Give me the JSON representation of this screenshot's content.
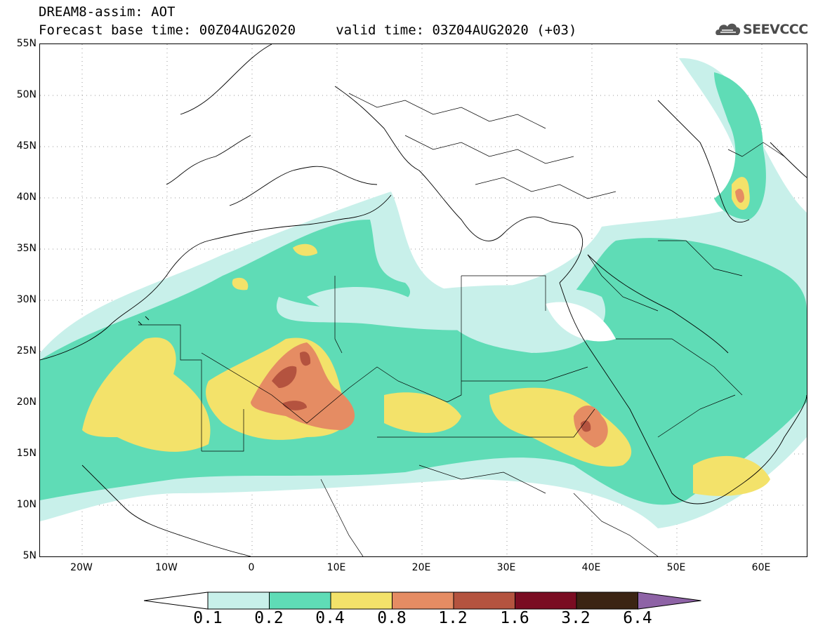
{
  "header": {
    "title_line1": "DREAM8-assim: AOT",
    "title_line2": "Forecast base time: 00Z04AUG2020     valid time: 03Z04AUG2020 (+03)",
    "logo_text": "SEEVCCC"
  },
  "map": {
    "region": "North Africa, Europe and Middle East",
    "lat_labels": [
      "55N",
      "50N",
      "45N",
      "40N",
      "35N",
      "30N",
      "25N",
      "20N",
      "15N",
      "10N",
      "5N"
    ],
    "lon_labels": [
      "20W",
      "10W",
      "0",
      "10E",
      "20E",
      "30E",
      "40E",
      "50E",
      "60E"
    ],
    "variable": "Aerosol Optical Thickness"
  },
  "colorbar": {
    "labels": [
      "0.1",
      "0.2",
      "0.4",
      "0.8",
      "1.2",
      "1.6",
      "3.2",
      "6.4"
    ],
    "colors": [
      "#c8f0ea",
      "#5fdcb6",
      "#f3e26a",
      "#e58c63",
      "#b4533f",
      "#7a0c22",
      "#3b2413",
      "#8e63a6"
    ],
    "under_color": "#ffffff"
  }
}
